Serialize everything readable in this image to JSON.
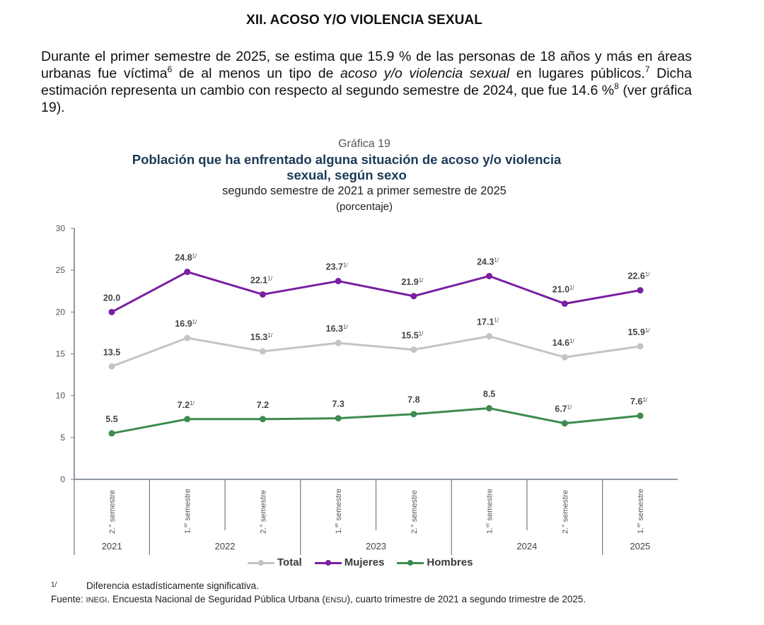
{
  "section": {
    "title": "XII. ACOSO Y/O VIOLENCIA SEXUAL"
  },
  "intro": {
    "part1": "Durante el primer semestre de 2025, se estima que 15.9 % de las personas de 18 años y más en áreas urbanas fue víctima",
    "sup1": "6",
    "part2": " de al menos un tipo de ",
    "emphasis": "acoso y/o violencia sexual",
    "part3": " en lugares públicos.",
    "sup2": "7",
    "part4": " Dicha estimación representa un cambio con respecto al segundo semestre de 2024, que fue 14.6 %",
    "sup3": "8",
    "part5": " (ver gráfica 19)."
  },
  "chart_header": {
    "label": "Gráfica 19",
    "title_line1": "Población que ha enfrentado alguna situación de acoso y/o violencia",
    "title_line2": "sexual, según sexo",
    "subtitle": "segundo semestre de 2021 a primer semestre de 2025",
    "units": "(porcentaje)"
  },
  "chart_data": {
    "type": "line",
    "title": "Población que ha enfrentado alguna situación de acoso y/o violencia sexual, según sexo",
    "subtitle": "segundo semestre de 2021 a primer semestre de 2025",
    "ylabel": "(porcentaje)",
    "xlabel": "",
    "ylim": [
      0,
      30
    ],
    "yticks": [
      0,
      5,
      10,
      15,
      20,
      25,
      30
    ],
    "grid": false,
    "legend_position": "bottom-center",
    "categories": [
      "2.° semestre 2021",
      "1.er semestre 2022",
      "2.° semestre 2022",
      "1.er semestre 2023",
      "2.° semestre 2023",
      "1.er semestre 2024",
      "2.° semestre 2024",
      "1.er semestre 2025"
    ],
    "category_labels": [
      {
        "sem": "2.°",
        "sup": "",
        "text": " semestre"
      },
      {
        "sem": "1.",
        "sup": "er",
        "text": " semestre"
      },
      {
        "sem": "2.°",
        "sup": "",
        "text": " semestre"
      },
      {
        "sem": "1.",
        "sup": "er",
        "text": " semestre"
      },
      {
        "sem": "2.°",
        "sup": "",
        "text": " semestre"
      },
      {
        "sem": "1.",
        "sup": "er",
        "text": " semestre"
      },
      {
        "sem": "2.°",
        "sup": "",
        "text": " semestre"
      },
      {
        "sem": "1.",
        "sup": "er",
        "text": " semestre"
      }
    ],
    "year_groups": [
      {
        "label": "2021",
        "span": [
          0,
          0
        ]
      },
      {
        "label": "2022",
        "span": [
          1,
          2
        ]
      },
      {
        "label": "2023",
        "span": [
          3,
          4
        ]
      },
      {
        "label": "2024",
        "span": [
          5,
          6
        ]
      },
      {
        "label": "2025",
        "span": [
          7,
          7
        ]
      }
    ],
    "series": [
      {
        "name": "Total",
        "color": "#c4c4c4",
        "values": [
          13.5,
          16.9,
          15.3,
          16.3,
          15.5,
          17.1,
          14.6,
          15.9
        ],
        "significant": [
          false,
          true,
          true,
          true,
          true,
          true,
          true,
          true
        ]
      },
      {
        "name": "Mujeres",
        "color": "#7a1fa2",
        "values": [
          20.0,
          24.8,
          22.1,
          23.7,
          21.9,
          24.3,
          21.0,
          22.6
        ],
        "significant": [
          false,
          true,
          true,
          true,
          true,
          true,
          true,
          true
        ]
      },
      {
        "name": "Hombres",
        "color": "#3d8b4f",
        "values": [
          5.5,
          7.2,
          7.2,
          7.3,
          7.8,
          8.5,
          6.7,
          7.6
        ],
        "significant": [
          false,
          true,
          false,
          false,
          false,
          false,
          true,
          true
        ]
      }
    ],
    "significance_marker": "1/"
  },
  "legend": [
    {
      "label": "Total",
      "color": "#c4c4c4"
    },
    {
      "label": "Mujeres",
      "color": "#7a1fa2"
    },
    {
      "label": "Hombres",
      "color": "#3d8b4f"
    }
  ],
  "footnote": {
    "marker": "1/",
    "text": "Diferencia estadísticamente significativa."
  },
  "source": {
    "prefix": "Fuente: ",
    "org": "INEGI",
    "text1": ". Encuesta Nacional de Seguridad Pública Urbana (",
    "abbr": "ENSU",
    "text2": "), cuarto trimestre de 2021 a segundo trimestre de 2025."
  }
}
